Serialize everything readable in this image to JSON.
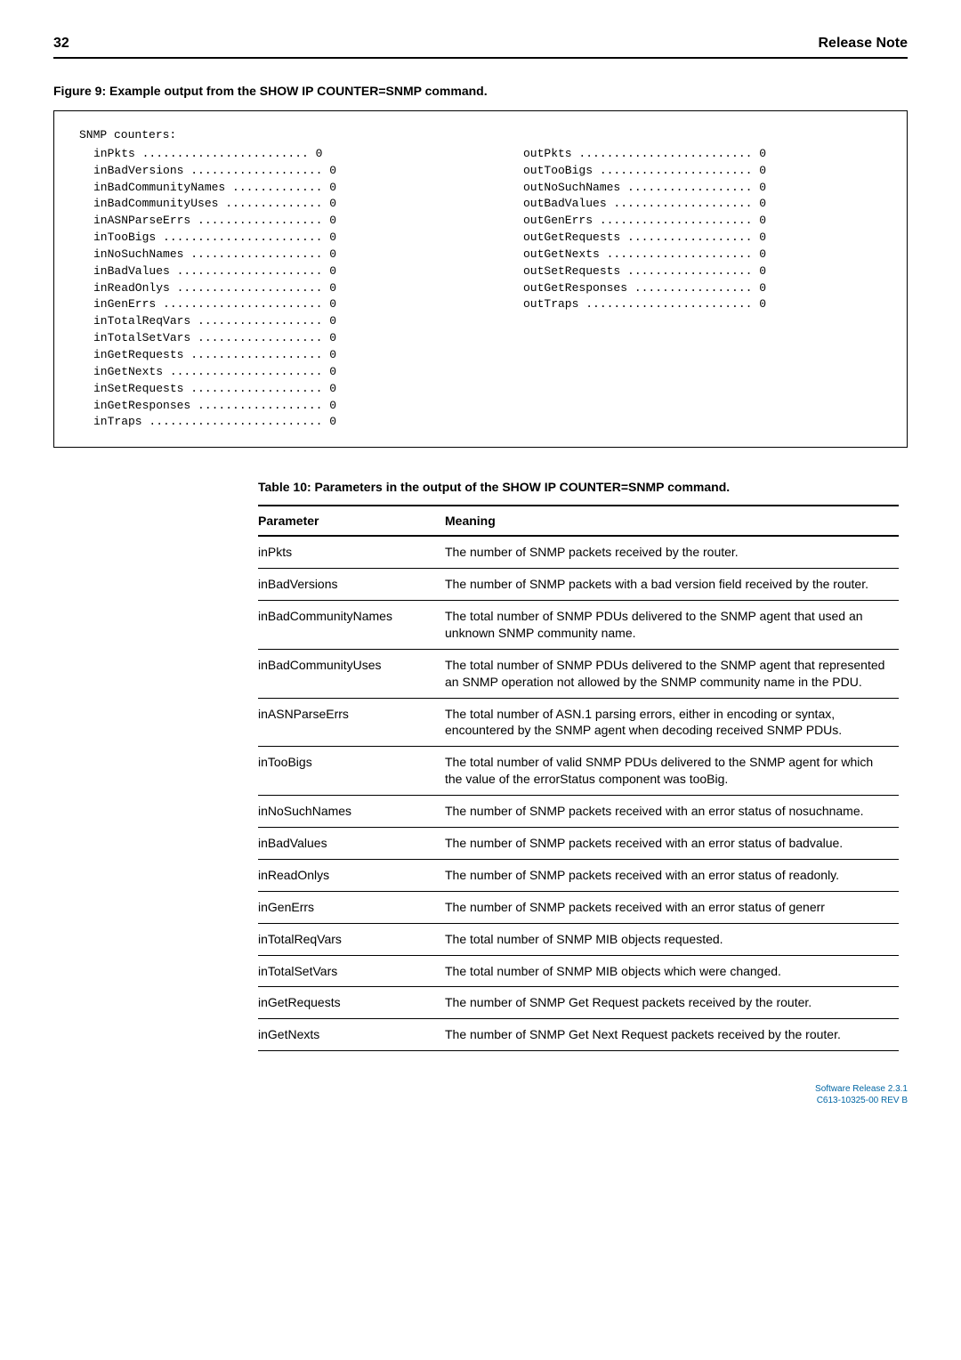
{
  "header": {
    "page_number": "32",
    "title": "Release Note"
  },
  "figure_title": "Figure 9: Example output from the SHOW IP COUNTER=SNMP command.",
  "counters": {
    "heading": "SNMP counters:",
    "left": [
      {
        "label": "inPkts",
        "dots": "........................",
        "value": "0"
      },
      {
        "label": "inBadVersions",
        "dots": "...................",
        "value": "0"
      },
      {
        "label": "inBadCommunityNames",
        "dots": ".............",
        "value": "0"
      },
      {
        "label": "inBadCommunityUses",
        "dots": "..............",
        "value": "0"
      },
      {
        "label": "inASNParseErrs",
        "dots": "..................",
        "value": "0"
      },
      {
        "label": "inTooBigs",
        "dots": ".......................",
        "value": "0"
      },
      {
        "label": "inNoSuchNames",
        "dots": "...................",
        "value": "0"
      },
      {
        "label": "inBadValues",
        "dots": ".....................",
        "value": "0"
      },
      {
        "label": "inReadOnlys",
        "dots": ".....................",
        "value": "0"
      },
      {
        "label": "inGenErrs",
        "dots": ".......................",
        "value": "0"
      },
      {
        "label": "inTotalReqVars",
        "dots": "..................",
        "value": "0"
      },
      {
        "label": "inTotalSetVars",
        "dots": "..................",
        "value": "0"
      },
      {
        "label": "inGetRequests",
        "dots": "...................",
        "value": "0"
      },
      {
        "label": "inGetNexts",
        "dots": "......................",
        "value": "0"
      },
      {
        "label": "inSetRequests",
        "dots": "...................",
        "value": "0"
      },
      {
        "label": "inGetResponses",
        "dots": "..................",
        "value": "0"
      },
      {
        "label": "inTraps",
        "dots": ".........................",
        "value": "0"
      }
    ],
    "right": [
      {
        "label": "outPkts",
        "dots": ".........................",
        "value": "0"
      },
      {
        "label": "outTooBigs",
        "dots": "......................",
        "value": "0"
      },
      {
        "label": "outNoSuchNames",
        "dots": "..................",
        "value": "0"
      },
      {
        "label": "outBadValues",
        "dots": "....................",
        "value": "0"
      },
      {
        "label": "outGenErrs",
        "dots": "......................",
        "value": "0"
      },
      {
        "label": "outGetRequests",
        "dots": "..................",
        "value": "0"
      },
      {
        "label": "outGetNexts",
        "dots": ".....................",
        "value": "0"
      },
      {
        "label": "outSetRequests",
        "dots": "..................",
        "value": "0"
      },
      {
        "label": "outGetResponses",
        "dots": ".................",
        "value": "0"
      },
      {
        "label": "outTraps",
        "dots": "........................",
        "value": "0"
      }
    ]
  },
  "table_title": "Table 10: Parameters in the output of the SHOW IP COUNTER=SNMP command.",
  "table": {
    "columns": {
      "param": "Parameter",
      "meaning": "Meaning"
    },
    "rows": [
      {
        "param": "inPkts",
        "meaning": "The number of SNMP packets received by the router."
      },
      {
        "param": "inBadVersions",
        "meaning": "The number of SNMP packets with a bad version field received by the router."
      },
      {
        "param": "inBadCommunityNames",
        "meaning": "The total number of SNMP PDUs delivered to the SNMP agent that used an unknown SNMP community name."
      },
      {
        "param": "inBadCommunityUses",
        "meaning": "The total number of SNMP PDUs delivered to the SNMP agent that represented an SNMP operation not allowed by the SNMP community name in the PDU."
      },
      {
        "param": "inASNParseErrs",
        "meaning": "The total number of ASN.1 parsing errors, either in encoding or syntax, encountered by the SNMP agent when decoding received SNMP PDUs."
      },
      {
        "param": "inTooBigs",
        "meaning": "The total number of valid SNMP PDUs delivered to the SNMP agent for which the value of the errorStatus component was tooBig."
      },
      {
        "param": "inNoSuchNames",
        "meaning": "The number of SNMP packets received with an error status of nosuchname."
      },
      {
        "param": "inBadValues",
        "meaning": "The number of SNMP packets received with an error status of badvalue."
      },
      {
        "param": "inReadOnlys",
        "meaning": "The number of SNMP packets received with an error status of readonly."
      },
      {
        "param": "inGenErrs",
        "meaning": "The number of SNMP packets received with an error status of generr"
      },
      {
        "param": "inTotalReqVars",
        "meaning": "The total number of SNMP MIB objects requested."
      },
      {
        "param": "inTotalSetVars",
        "meaning": "The total number of SNMP MIB objects which were changed."
      },
      {
        "param": "inGetRequests",
        "meaning": "The number of SNMP Get Request packets received by the router."
      },
      {
        "param": "inGetNexts",
        "meaning": "The number of SNMP Get Next Request packets received by the router."
      }
    ]
  },
  "footer": {
    "line1": "Software Release 2.3.1",
    "line2": "C613-10325-00 REV B"
  }
}
